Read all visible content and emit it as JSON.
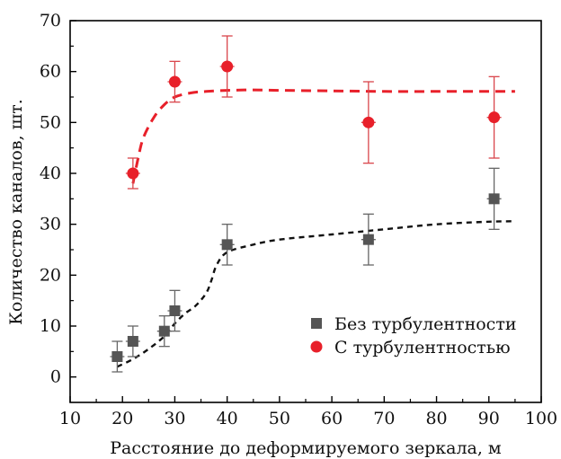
{
  "chart_data": {
    "type": "scatter",
    "xlabel": "Расстояние до деформируемого зеркала, м",
    "ylabel": "Количество каналов, шт.",
    "xlim": [
      10,
      100
    ],
    "ylim": [
      -5,
      70
    ],
    "xticks": [
      10,
      20,
      30,
      40,
      50,
      60,
      70,
      80,
      90,
      100
    ],
    "yticks": [
      0,
      10,
      20,
      30,
      40,
      50,
      60,
      70
    ],
    "grid": false,
    "legend_position": "bottom-right",
    "series": [
      {
        "name": "Без турбулентности",
        "marker": "square",
        "color": "#555555",
        "points": [
          {
            "x": 19,
            "y": 4,
            "ylow": 1,
            "yhigh": 7
          },
          {
            "x": 22,
            "y": 7,
            "ylow": 4,
            "yhigh": 10
          },
          {
            "x": 28,
            "y": 9,
            "ylow": 6,
            "yhigh": 12
          },
          {
            "x": 30,
            "y": 13,
            "ylow": 9,
            "yhigh": 17
          },
          {
            "x": 40,
            "y": 26,
            "ylow": 22,
            "yhigh": 30
          },
          {
            "x": 67,
            "y": 27,
            "ylow": 22,
            "yhigh": 32
          },
          {
            "x": 91,
            "y": 35,
            "ylow": 29,
            "yhigh": 41
          }
        ],
        "fit": {
          "color": "#111111",
          "points": [
            [
              19,
              2
            ],
            [
              22,
              3.5
            ],
            [
              25,
              5.5
            ],
            [
              28,
              8
            ],
            [
              30,
              10.5
            ],
            [
              32,
              12.5
            ],
            [
              34,
              14
            ],
            [
              36,
              16.5
            ],
            [
              37,
              19
            ],
            [
              38,
              22
            ],
            [
              40,
              24.5
            ],
            [
              45,
              26
            ],
            [
              50,
              27
            ],
            [
              60,
              28
            ],
            [
              70,
              29
            ],
            [
              80,
              30
            ],
            [
              90,
              30.5
            ],
            [
              95,
              30.6
            ]
          ]
        }
      },
      {
        "name": "С турбулентностью",
        "marker": "circle",
        "color": "#e8202a",
        "points": [
          {
            "x": 22,
            "y": 40,
            "ylow": 37,
            "yhigh": 43
          },
          {
            "x": 30,
            "y": 58,
            "ylow": 54,
            "yhigh": 62
          },
          {
            "x": 40,
            "y": 61,
            "ylow": 55,
            "yhigh": 67
          },
          {
            "x": 67,
            "y": 50,
            "ylow": 42,
            "yhigh": 58
          },
          {
            "x": 91,
            "y": 51,
            "ylow": 43,
            "yhigh": 59
          }
        ],
        "fit": {
          "color": "#e8202a",
          "points": [
            [
              22,
              38
            ],
            [
              23,
              43
            ],
            [
              24,
              47
            ],
            [
              26,
              51
            ],
            [
              28,
              53.5
            ],
            [
              30,
              55
            ],
            [
              33,
              55.8
            ],
            [
              36,
              56.1
            ],
            [
              40,
              56.3
            ],
            [
              45,
              56.4
            ],
            [
              50,
              56.3
            ],
            [
              60,
              56.2
            ],
            [
              70,
              56.1
            ],
            [
              80,
              56.1
            ],
            [
              90,
              56.1
            ],
            [
              95,
              56.1
            ]
          ]
        }
      }
    ]
  }
}
